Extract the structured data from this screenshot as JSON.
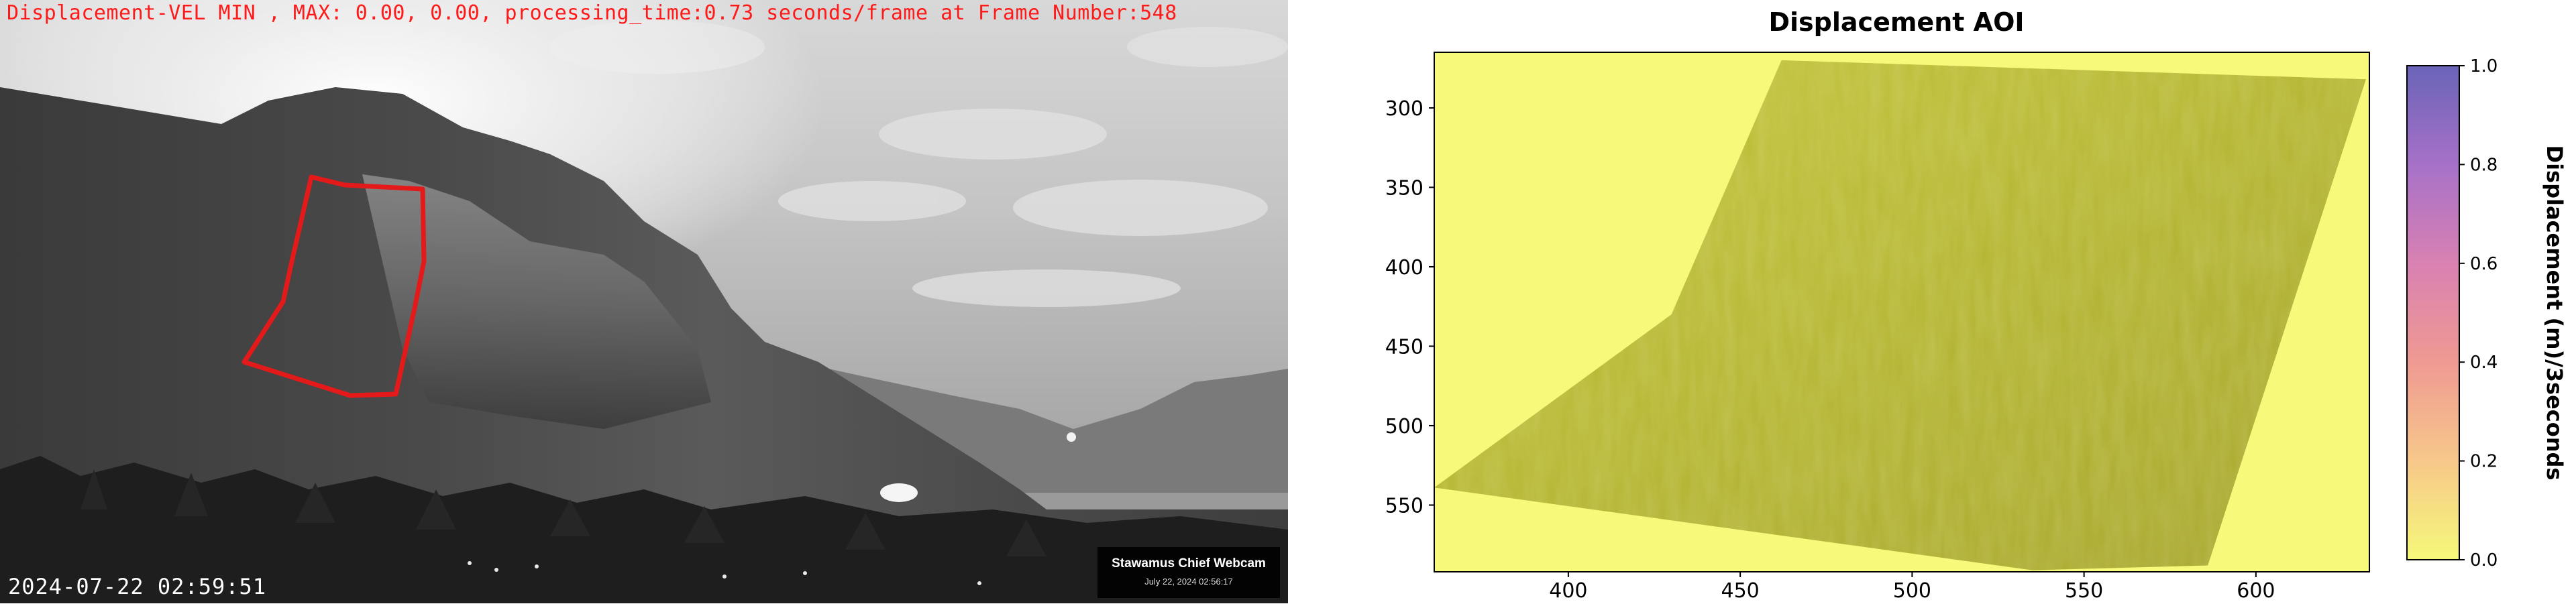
{
  "webcam": {
    "hud_text": "Displacement-VEL MIN , MAX: 0.00, 0.00, processing_time:0.73 seconds/frame at Frame Number:548",
    "timestamp": "2024-07-22 02:59:51",
    "badge_title": "Stawamus Chief Webcam",
    "badge_date": "July 22, 2024 02:56:17",
    "aoi_color": "#e41a1a"
  },
  "chart_data": {
    "type": "heatmap",
    "title": "Displacement AOI",
    "xlabel": "",
    "ylabel": "",
    "x_ticks": [
      400,
      450,
      500,
      550,
      600
    ],
    "y_ticks": [
      300,
      350,
      400,
      450,
      500,
      550
    ],
    "xlim": [
      361,
      633
    ],
    "ylim": [
      592,
      265
    ],
    "colorbar": {
      "label": "Displacement (m)/3seconds",
      "ticks": [
        "0.0",
        "0.2",
        "0.4",
        "0.6",
        "0.8",
        "1.0"
      ],
      "range": [
        0.0,
        1.0
      ],
      "colors": [
        "#f6f97a",
        "#f7c88a",
        "#ef9a92",
        "#d981b2",
        "#a671c8",
        "#6a64b8"
      ],
      "placement": "right"
    },
    "aoi_polygon": [
      [
        462,
        270
      ],
      [
        632,
        282
      ],
      [
        586,
        588
      ],
      [
        535,
        591
      ],
      [
        361,
        539
      ],
      [
        430,
        430
      ]
    ],
    "displacement_value": 0.0,
    "grid": false
  }
}
